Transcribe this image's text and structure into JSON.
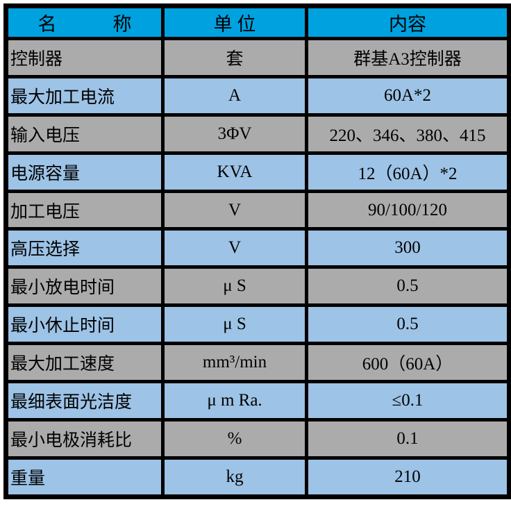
{
  "table": {
    "columns": [
      {
        "key": "name",
        "label": "名　　　称"
      },
      {
        "key": "unit",
        "label": "单 位"
      },
      {
        "key": "content",
        "label": "内容"
      }
    ],
    "rows": [
      {
        "name": "控制器",
        "unit": "套",
        "content": "群基A3控制器"
      },
      {
        "name": "最大加工电流",
        "unit": "A",
        "content": "60A*2"
      },
      {
        "name": "输入电压",
        "unit": "3ΦV",
        "content": "220、346、380、415"
      },
      {
        "name": "电源容量",
        "unit": "KVA",
        "content": "12（60A）*2"
      },
      {
        "name": "加工电压",
        "unit": "V",
        "content": "90/100/120"
      },
      {
        "name": "高压选择",
        "unit": "V",
        "content": "300"
      },
      {
        "name": "最小放电时间",
        "unit": "μ S",
        "content": "0.5"
      },
      {
        "name": "最小休止时间",
        "unit": "μ S",
        "content": "0.5"
      },
      {
        "name": "最大加工速度",
        "unit": "mm³/min",
        "content": "600（60A）"
      },
      {
        "name": "最细表面光洁度",
        "unit": "μ m Ra.",
        "content": "≤0.1"
      },
      {
        "name": "最小电极消耗比",
        "unit": "%",
        "content": "0.1"
      },
      {
        "name": "重量",
        "unit": "kg",
        "content": "210"
      }
    ]
  },
  "colors": {
    "header_bg": "#00A1DF",
    "row_gray": "#ABABAB",
    "row_blue": "#9DC3E6",
    "border": "#000000",
    "text": "#000000",
    "page_bg": "#FFFFFF"
  }
}
